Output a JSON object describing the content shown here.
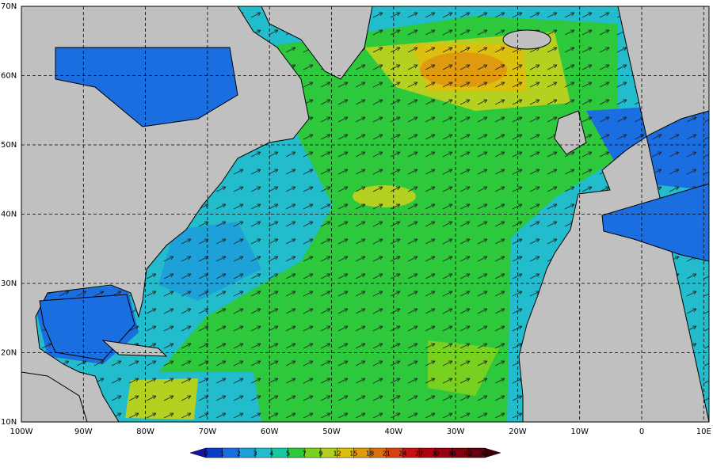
{
  "map": {
    "lon_labels": [
      "100W",
      "90W",
      "80W",
      "70W",
      "60W",
      "50W",
      "40W",
      "30W",
      "20W",
      "10W",
      "0",
      "10E"
    ],
    "lat_labels": [
      "70N",
      "60N",
      "50N",
      "40N",
      "30N",
      "20N",
      "10N"
    ]
  },
  "colorbar": {
    "labels": [
      0,
      1,
      2,
      3,
      4,
      5,
      7,
      9,
      12,
      15,
      18,
      21,
      24,
      27,
      30,
      36,
      42,
      48
    ],
    "under_color": "#1414a0",
    "colors": [
      "#0a3cc8",
      "#1a6ee0",
      "#1ea0d8",
      "#22bccc",
      "#14c8a0",
      "#2ec83c",
      "#78d020",
      "#b4d020",
      "#dcc010",
      "#e09a10",
      "#dc7010",
      "#d84010",
      "#c81010",
      "#b00010",
      "#980010",
      "#800010",
      "#600010"
    ],
    "over_color": "#400008"
  }
}
